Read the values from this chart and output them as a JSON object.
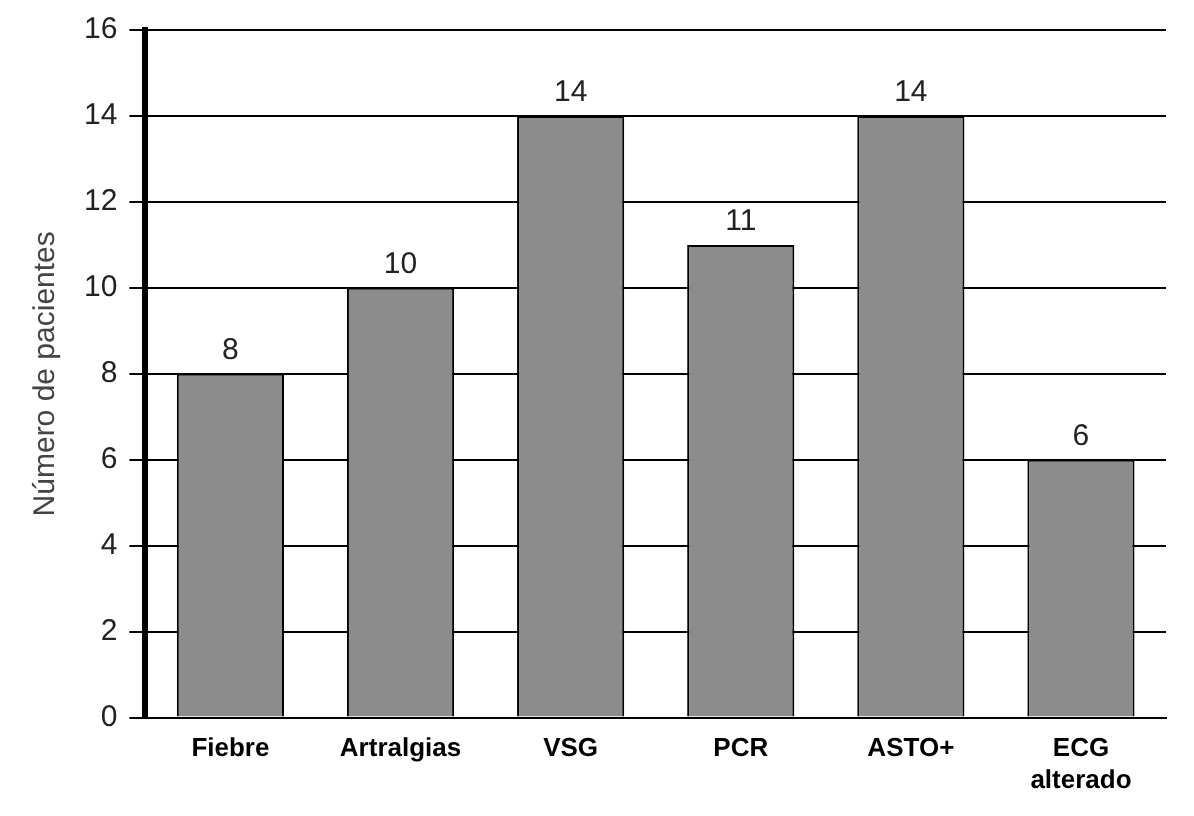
{
  "chart_data": {
    "type": "bar",
    "ylabel": "Número de pacientes",
    "categories": [
      "Fiebre",
      "Artralgias",
      "VSG",
      "PCR",
      "ASTO+",
      "ECG alterado"
    ],
    "values": [
      8,
      10,
      14,
      11,
      14,
      6
    ],
    "color": "#8c8c8c",
    "ylim": [
      0,
      16
    ],
    "yticks": [
      0,
      2,
      4,
      6,
      8,
      10,
      12,
      14,
      16
    ],
    "grid": "y",
    "data_labels": true,
    "legend": false
  }
}
